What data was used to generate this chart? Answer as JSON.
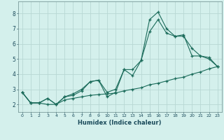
{
  "xlabel": "Humidex (Indice chaleur)",
  "bg_color": "#d4f0ec",
  "grid_color": "#b8d8d4",
  "line_color": "#1a6b5a",
  "spine_color": "#7a9a9a",
  "xlim": [
    -0.5,
    23.5
  ],
  "ylim": [
    1.5,
    8.8
  ],
  "xticks": [
    0,
    1,
    2,
    3,
    4,
    5,
    6,
    7,
    8,
    9,
    10,
    11,
    12,
    13,
    14,
    15,
    16,
    17,
    18,
    19,
    20,
    21,
    22,
    23
  ],
  "yticks": [
    2,
    3,
    4,
    5,
    6,
    7,
    8
  ],
  "line1_x": [
    0,
    1,
    2,
    3,
    4,
    5,
    6,
    7,
    8,
    9,
    10,
    11,
    12,
    13,
    14,
    15,
    16,
    17,
    18,
    19,
    20,
    21,
    22,
    23
  ],
  "line1_y": [
    2.8,
    2.1,
    2.1,
    2.0,
    2.0,
    2.3,
    2.4,
    2.5,
    2.6,
    2.65,
    2.7,
    2.75,
    2.9,
    3.0,
    3.1,
    3.3,
    3.4,
    3.55,
    3.7,
    3.8,
    4.0,
    4.15,
    4.35,
    4.5
  ],
  "line2_x": [
    0,
    1,
    2,
    3,
    4,
    5,
    6,
    7,
    8,
    9,
    10,
    11,
    12,
    13,
    14,
    15,
    16,
    17,
    18,
    19,
    20,
    21,
    22,
    23
  ],
  "line2_y": [
    2.8,
    2.1,
    2.1,
    2.4,
    2.0,
    2.5,
    2.6,
    2.9,
    3.5,
    3.6,
    2.5,
    2.8,
    4.3,
    4.3,
    4.9,
    7.6,
    8.1,
    7.0,
    6.5,
    6.6,
    5.2,
    5.2,
    5.1,
    4.5
  ],
  "line3_x": [
    0,
    1,
    2,
    3,
    4,
    5,
    6,
    7,
    8,
    9,
    10,
    11,
    12,
    13,
    14,
    15,
    16,
    17,
    18,
    19,
    20,
    21,
    22,
    23
  ],
  "line3_y": [
    2.8,
    2.1,
    2.1,
    2.4,
    2.0,
    2.5,
    2.7,
    3.0,
    3.5,
    3.6,
    2.8,
    3.0,
    4.3,
    3.9,
    4.9,
    6.8,
    7.6,
    6.7,
    6.5,
    6.5,
    5.7,
    5.2,
    5.0,
    4.5
  ]
}
